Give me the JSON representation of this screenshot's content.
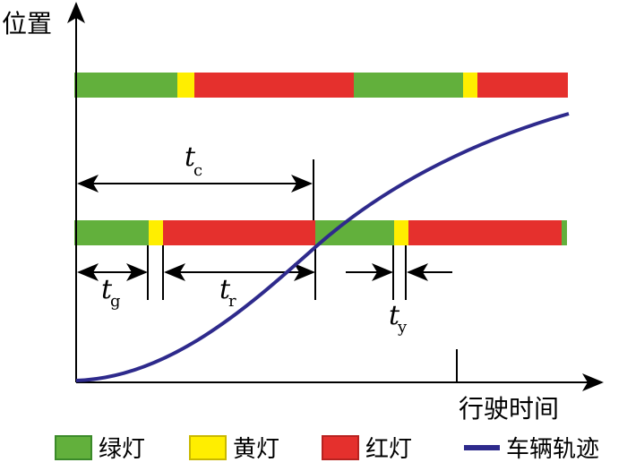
{
  "axes": {
    "y_label": "位置",
    "x_label": "行驶时间"
  },
  "annotations": {
    "tc": "t",
    "tc_sub": "c",
    "tg": "t",
    "tg_sub": "g",
    "tr": "t",
    "tr_sub": "r",
    "ty": "t",
    "ty_sub": "y"
  },
  "legend": [
    {
      "label": "绿灯",
      "color": "#62b03c"
    },
    {
      "label": "黄灯",
      "color": "#ffee00"
    },
    {
      "label": "红灯",
      "color": "#e5302d"
    },
    {
      "label": "车辆轨迹",
      "color": "#2e2a8c"
    }
  ],
  "colors": {
    "green": "#62b03c",
    "yellow": "#ffee00",
    "red": "#e5302d",
    "trajectory": "#2e2a8c"
  }
}
